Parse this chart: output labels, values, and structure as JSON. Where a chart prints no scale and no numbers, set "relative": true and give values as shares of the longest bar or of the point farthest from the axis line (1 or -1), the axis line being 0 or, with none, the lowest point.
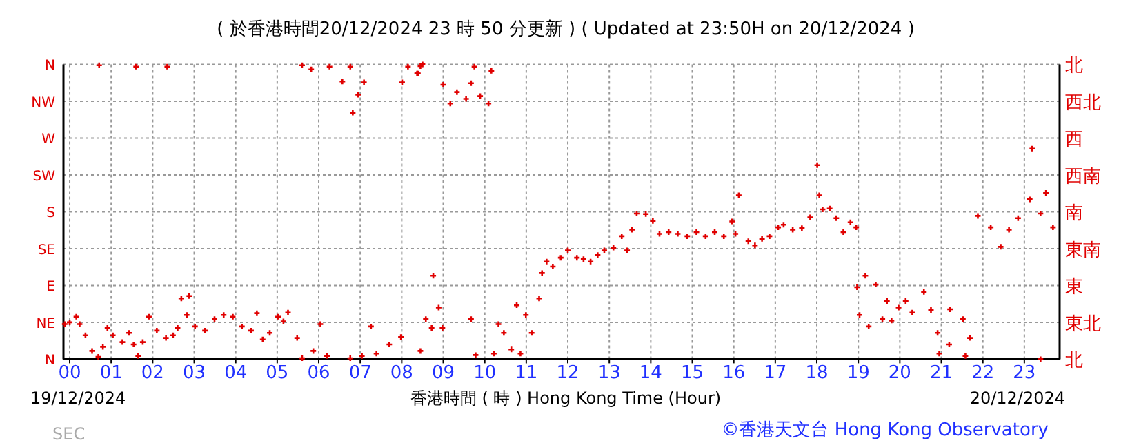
{
  "chart_data": {
    "type": "scatter",
    "title": "( 於香港時間20/12/2024 23 時 50 分更新 ) ( Updated at 23:50H on 20/12/2024 )",
    "xlabel": "香港時間 ( 時 ) Hong Kong Time (Hour)",
    "annotations": [
      "19/12/2024",
      "20/12/2024",
      "SEC",
      "©香港天文台 Hong Kong Observatory",
      "N",
      "NE",
      "E",
      "SE",
      "S",
      "SW",
      "W",
      "NW",
      "N",
      "北",
      "東北",
      "東",
      "東南",
      "南",
      "西南",
      "西",
      "西北",
      "北"
    ],
    "marker": "cross",
    "grid": true,
    "relative": true,
    "xlim": [
      -0.15,
      23.85
    ],
    "xticks": [
      {
        "value": 0,
        "label": "00"
      },
      {
        "value": 1,
        "label": "01"
      },
      {
        "value": 2,
        "label": "02"
      },
      {
        "value": 3,
        "label": "03"
      },
      {
        "value": 4,
        "label": "04"
      },
      {
        "value": 5,
        "label": "05"
      },
      {
        "value": 6,
        "label": "06"
      },
      {
        "value": 7,
        "label": "07"
      },
      {
        "value": 8,
        "label": "08"
      },
      {
        "value": 9,
        "label": "09"
      },
      {
        "value": 10,
        "label": "10"
      },
      {
        "value": 11,
        "label": "11"
      },
      {
        "value": 12,
        "label": "12"
      },
      {
        "value": 13,
        "label": "13"
      },
      {
        "value": 14,
        "label": "14"
      },
      {
        "value": 15,
        "label": "15"
      },
      {
        "value": 16,
        "label": "16"
      },
      {
        "value": 17,
        "label": "17"
      },
      {
        "value": 18,
        "label": "18"
      },
      {
        "value": 19,
        "label": "19"
      },
      {
        "value": 20,
        "label": "20"
      },
      {
        "value": 21,
        "label": "21"
      },
      {
        "value": 22,
        "label": "22"
      },
      {
        "value": 23,
        "label": "23"
      }
    ],
    "series": [
      {
        "color": "#e00000",
        "x": [
          -0.12,
          0,
          0.16,
          0.24,
          0.38,
          0.54,
          0.69,
          0.8,
          0.91,
          1.04,
          1.27,
          1.43,
          1.54,
          1.65,
          1.76,
          1.91,
          2.1,
          2.32,
          2.49,
          2.6,
          2.69,
          2.82,
          2.88,
          3.02,
          3.26,
          3.49,
          3.71,
          3.93,
          4.15,
          4.37,
          4.51,
          4.65,
          4.82,
          5.02,
          5.15,
          5.26,
          5.48,
          5.6,
          5.87,
          6.04,
          6.2,
          6.76,
          7.04,
          7.26,
          7.39,
          7.7,
          7.98,
          0.71,
          1.6,
          2.35,
          5.6,
          5.82,
          6.26,
          6.57,
          6.76,
          6.82,
          6.95,
          7.09,
          8.01,
          8.15,
          8.37,
          8.5,
          8.39,
          8.45,
          9,
          9.17,
          9.33,
          9.55,
          9.67,
          9.75,
          9.89,
          10.09,
          10.16,
          8.45,
          8.58,
          8.72,
          8.76,
          8.89,
          8.98,
          9.67,
          9.78,
          10.22,
          10.33,
          10.46,
          10.64,
          10.77,
          10.86,
          10.99,
          11.13,
          11.31,
          11.38,
          11.49,
          11.64,
          11.83,
          12,
          12.22,
          12.38,
          12.55,
          12.72,
          12.88,
          13.1,
          13.3,
          13.43,
          13.55,
          13.66,
          13.88,
          14.05,
          14.21,
          14.43,
          14.65,
          14.88,
          15.1,
          15.32,
          15.54,
          15.76,
          15.96,
          16.04,
          16.12,
          16.35,
          16.51,
          16.68,
          16.86,
          17.07,
          17.2,
          17.42,
          17.64,
          17.84,
          18.01,
          18.06,
          18.14,
          18.31,
          18.47,
          18.64,
          18.81,
          18.95,
          18.97,
          19.03,
          19.17,
          19.25,
          19.42,
          19.58,
          19.69,
          19.8,
          19.97,
          20.14,
          20.3,
          20.58,
          20.75,
          20.91,
          20.95,
          21.19,
          21.21,
          21.52,
          21.58,
          21.69,
          21.88,
          22.19,
          22.43,
          22.63,
          22.85,
          23.13,
          23.19,
          23.39,
          23.52,
          23.69,
          23.39
        ],
        "values": [
          0.119,
          0.125,
          0.144,
          0.119,
          0.081,
          0.028,
          0.008,
          0.042,
          0.106,
          0.081,
          0.058,
          0.089,
          0.05,
          0.011,
          0.058,
          0.144,
          0.097,
          0.072,
          0.081,
          0.106,
          0.206,
          0.15,
          0.214,
          0.111,
          0.097,
          0.136,
          0.15,
          0.144,
          0.111,
          0.097,
          0.156,
          0.067,
          0.089,
          0.144,
          0.128,
          0.158,
          0.072,
          0.003,
          0.028,
          0.119,
          0.011,
          0.003,
          0.011,
          0.111,
          0.019,
          0.05,
          0.075,
          0.997,
          0.992,
          0.992,
          0.997,
          0.983,
          0.992,
          0.942,
          0.992,
          0.836,
          0.897,
          0.939,
          0.939,
          0.992,
          0.969,
          1,
          0.969,
          0.994,
          0.931,
          0.867,
          0.906,
          0.883,
          0.936,
          0.992,
          0.892,
          0.867,
          0.978,
          0.028,
          0.136,
          0.106,
          0.283,
          0.175,
          0.106,
          0.136,
          0.014,
          0.019,
          0.119,
          0.089,
          0.033,
          0.183,
          0.019,
          0.15,
          0.089,
          0.206,
          0.292,
          0.331,
          0.314,
          0.344,
          0.369,
          0.344,
          0.339,
          0.331,
          0.353,
          0.369,
          0.378,
          0.417,
          0.369,
          0.439,
          0.494,
          0.492,
          0.469,
          0.425,
          0.431,
          0.425,
          0.417,
          0.431,
          0.417,
          0.431,
          0.417,
          0.467,
          0.425,
          0.556,
          0.4,
          0.386,
          0.408,
          0.417,
          0.447,
          0.456,
          0.439,
          0.444,
          0.481,
          0.658,
          0.556,
          0.508,
          0.511,
          0.478,
          0.431,
          0.464,
          0.447,
          0.244,
          0.15,
          0.283,
          0.111,
          0.253,
          0.136,
          0.197,
          0.131,
          0.175,
          0.197,
          0.158,
          0.228,
          0.167,
          0.089,
          0.019,
          0.05,
          0.169,
          0.136,
          0.011,
          0.072,
          0.486,
          0.447,
          0.381,
          0.439,
          0.478,
          0.542,
          0.714,
          0.494,
          0.564,
          0.447,
          0
        ]
      }
    ]
  }
}
